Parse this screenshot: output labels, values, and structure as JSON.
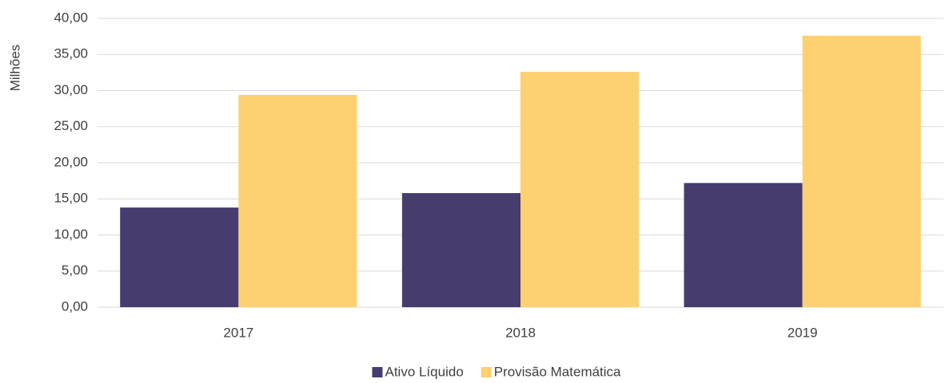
{
  "chart_data": {
    "type": "bar",
    "y_label": "Milhões",
    "categories": [
      "2017",
      "2018",
      "2019"
    ],
    "series": [
      {
        "name": "Ativo Líquido",
        "color": "#463c6e",
        "values": [
          13.8,
          15.8,
          17.2
        ]
      },
      {
        "name": "Provisão Matemática",
        "color": "#fdd071",
        "values": [
          29.4,
          32.6,
          37.6
        ]
      }
    ],
    "ylim": [
      0,
      40
    ],
    "yticks": [
      {
        "value": 0,
        "label": "0,00"
      },
      {
        "value": 5,
        "label": "5,00"
      },
      {
        "value": 10,
        "label": "10,00"
      },
      {
        "value": 15,
        "label": "15,00"
      },
      {
        "value": 20,
        "label": "20,00"
      },
      {
        "value": 25,
        "label": "25,00"
      },
      {
        "value": 30,
        "label": "30,00"
      },
      {
        "value": 35,
        "label": "35,00"
      },
      {
        "value": 40,
        "label": "40,00"
      }
    ],
    "grid": true,
    "legend": "bottom"
  }
}
